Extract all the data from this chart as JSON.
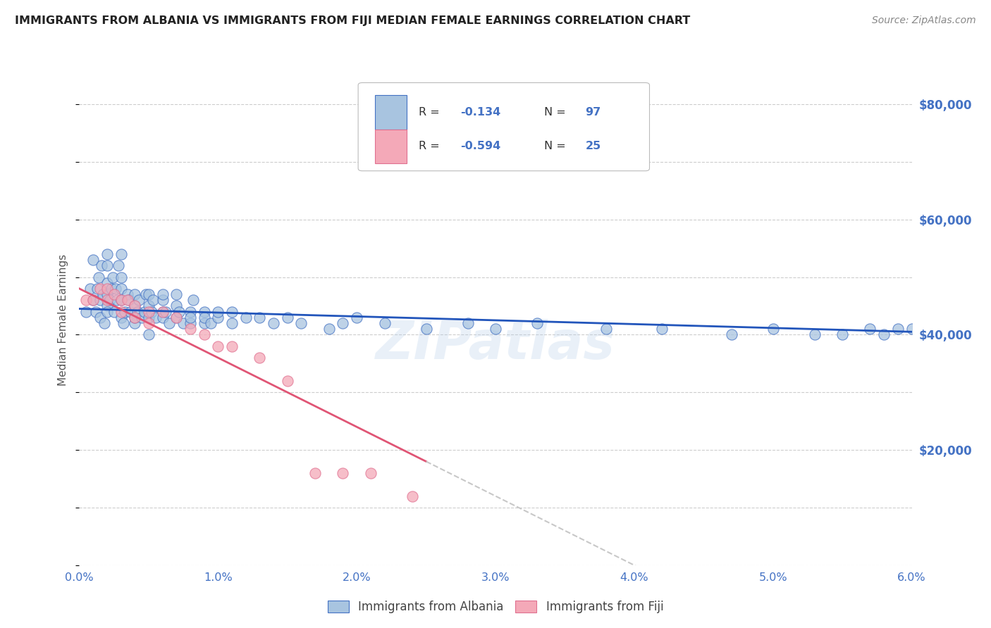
{
  "title": "IMMIGRANTS FROM ALBANIA VS IMMIGRANTS FROM FIJI MEDIAN FEMALE EARNINGS CORRELATION CHART",
  "source": "Source: ZipAtlas.com",
  "ylabel": "Median Female Earnings",
  "xlim": [
    0.0,
    0.06
  ],
  "ylim": [
    0,
    85000
  ],
  "yticks": [
    0,
    20000,
    40000,
    60000,
    80000
  ],
  "ytick_labels": [
    "",
    "$20,000",
    "$40,000",
    "$60,000",
    "$80,000"
  ],
  "xtick_labels": [
    "0.0%",
    "1.0%",
    "2.0%",
    "3.0%",
    "4.0%",
    "5.0%",
    "6.0%"
  ],
  "background_color": "#ffffff",
  "grid_color": "#c8c8c8",
  "albania_color": "#a8c4e0",
  "fiji_color": "#f4a9b8",
  "albania_edge_color": "#4472c4",
  "fiji_edge_color": "#e07090",
  "albania_line_color": "#2255bb",
  "fiji_line_color": "#e05575",
  "fiji_dash_color": "#c8c8c8",
  "axis_color": "#4472c4",
  "legend_label_albania": "Immigrants from Albania",
  "legend_label_fiji": "Immigrants from Fiji",
  "albania_x": [
    0.0005,
    0.0008,
    0.001,
    0.001,
    0.0012,
    0.0013,
    0.0014,
    0.0015,
    0.0015,
    0.0016,
    0.0017,
    0.0018,
    0.002,
    0.002,
    0.002,
    0.002,
    0.002,
    0.002,
    0.0022,
    0.0023,
    0.0024,
    0.0025,
    0.0026,
    0.0027,
    0.0028,
    0.003,
    0.003,
    0.003,
    0.003,
    0.003,
    0.0032,
    0.0033,
    0.0035,
    0.0036,
    0.0037,
    0.004,
    0.004,
    0.004,
    0.004,
    0.0042,
    0.0043,
    0.0045,
    0.0047,
    0.0048,
    0.005,
    0.005,
    0.005,
    0.005,
    0.0052,
    0.0053,
    0.0055,
    0.006,
    0.006,
    0.006,
    0.006,
    0.0062,
    0.0065,
    0.007,
    0.007,
    0.007,
    0.0072,
    0.0075,
    0.008,
    0.008,
    0.008,
    0.0082,
    0.009,
    0.009,
    0.009,
    0.0095,
    0.01,
    0.01,
    0.011,
    0.011,
    0.012,
    0.013,
    0.014,
    0.015,
    0.016,
    0.018,
    0.019,
    0.02,
    0.022,
    0.025,
    0.028,
    0.03,
    0.033,
    0.038,
    0.042,
    0.047,
    0.05,
    0.053,
    0.055,
    0.057,
    0.058,
    0.059,
    0.06
  ],
  "albania_y": [
    44000,
    48000,
    46000,
    53000,
    44000,
    48000,
    50000,
    43000,
    46000,
    52000,
    47000,
    42000,
    45000,
    47000,
    49000,
    52000,
    54000,
    44000,
    46000,
    48000,
    50000,
    44000,
    48000,
    46000,
    52000,
    43000,
    46000,
    48000,
    50000,
    54000,
    42000,
    44000,
    47000,
    46000,
    44000,
    42000,
    45000,
    47000,
    43000,
    44000,
    46000,
    43000,
    44000,
    47000,
    43000,
    45000,
    47000,
    40000,
    44000,
    46000,
    43000,
    44000,
    46000,
    43000,
    47000,
    44000,
    42000,
    43000,
    45000,
    47000,
    44000,
    42000,
    42000,
    44000,
    43000,
    46000,
    42000,
    44000,
    43000,
    42000,
    43000,
    44000,
    42000,
    44000,
    43000,
    43000,
    42000,
    43000,
    42000,
    41000,
    42000,
    43000,
    42000,
    41000,
    42000,
    41000,
    42000,
    41000,
    41000,
    40000,
    41000,
    40000,
    40000,
    41000,
    40000,
    41000,
    41000
  ],
  "fiji_x": [
    0.0005,
    0.001,
    0.0015,
    0.002,
    0.002,
    0.0025,
    0.003,
    0.003,
    0.0035,
    0.004,
    0.004,
    0.005,
    0.005,
    0.006,
    0.007,
    0.008,
    0.009,
    0.01,
    0.011,
    0.013,
    0.015,
    0.017,
    0.019,
    0.021,
    0.024
  ],
  "fiji_y": [
    46000,
    46000,
    48000,
    46000,
    48000,
    47000,
    46000,
    44000,
    46000,
    43000,
    45000,
    44000,
    42000,
    44000,
    43000,
    41000,
    40000,
    38000,
    38000,
    36000,
    32000,
    16000,
    16000,
    16000,
    12000
  ]
}
